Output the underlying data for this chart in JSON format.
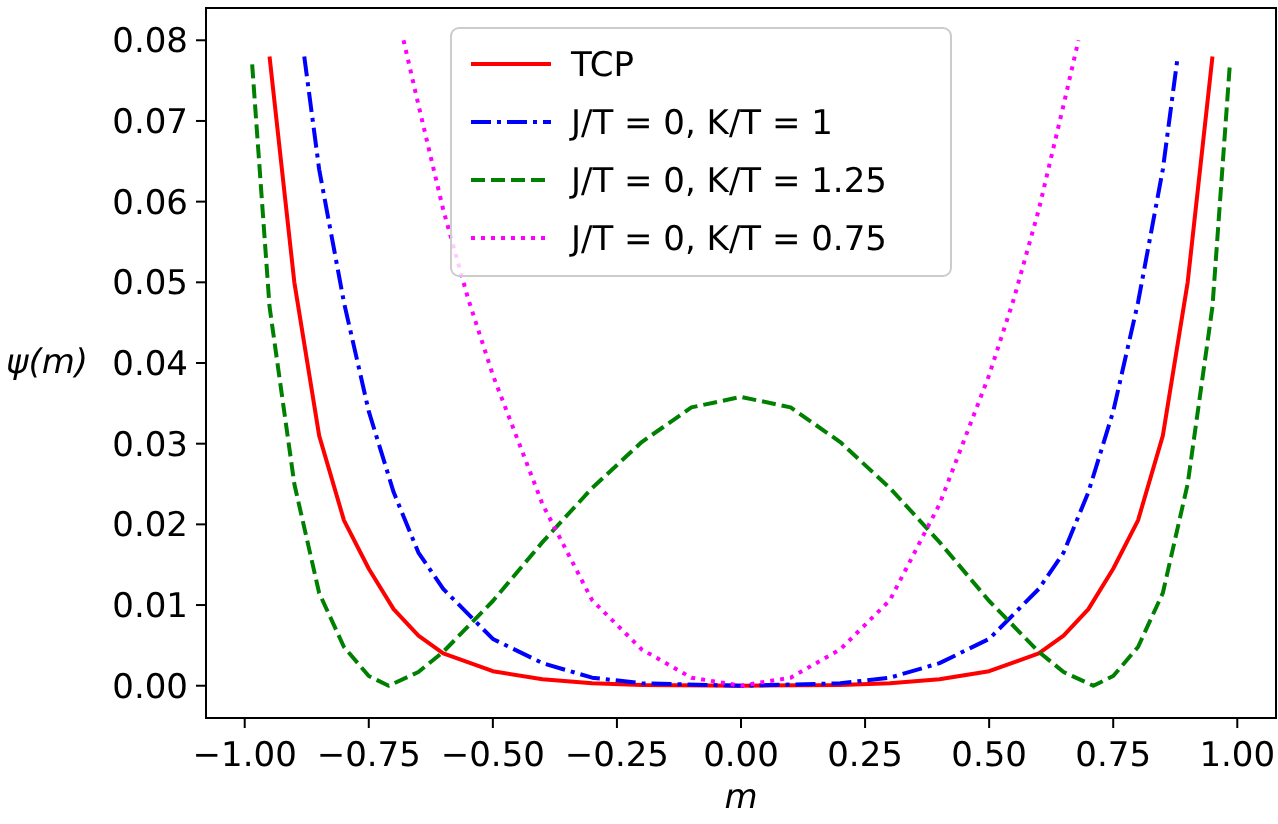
{
  "chart_data": {
    "type": "line",
    "xlabel": "m",
    "ylabel": "ψ(m)",
    "xlim": [
      -1.078,
      1.078
    ],
    "ylim": [
      -0.004,
      0.084
    ],
    "xticks": [
      {
        "value": -1,
        "label": "−1.00"
      },
      {
        "value": -0.75,
        "label": "−0.75"
      },
      {
        "value": -0.5,
        "label": "−0.50"
      },
      {
        "value": -0.25,
        "label": "−0.25"
      },
      {
        "value": 0,
        "label": "0.00"
      },
      {
        "value": 0.25,
        "label": "0.25"
      },
      {
        "value": 0.5,
        "label": "0.50"
      },
      {
        "value": 0.75,
        "label": "0.75"
      },
      {
        "value": 1,
        "label": "1.00"
      }
    ],
    "yticks": [
      {
        "value": 0,
        "label": "0.00"
      },
      {
        "value": 0.01,
        "label": "0.01"
      },
      {
        "value": 0.02,
        "label": "0.02"
      },
      {
        "value": 0.03,
        "label": "0.03"
      },
      {
        "value": 0.04,
        "label": "0.04"
      },
      {
        "value": 0.05,
        "label": "0.05"
      },
      {
        "value": 0.06,
        "label": "0.06"
      },
      {
        "value": 0.07,
        "label": "0.07"
      },
      {
        "value": 0.08,
        "label": "0.08"
      }
    ],
    "grid": false,
    "legend": "top",
    "marker": "none",
    "series": [
      {
        "name": "TCP",
        "color": "#ff0000",
        "line_style": "solid",
        "x": [
          -0.95,
          -0.9,
          -0.85,
          -0.8,
          -0.75,
          -0.7,
          -0.65,
          -0.6,
          -0.5,
          -0.4,
          -0.3,
          -0.2,
          0,
          0.2,
          0.3,
          0.4,
          0.5,
          0.6,
          0.65,
          0.7,
          0.75,
          0.8,
          0.85,
          0.9,
          0.95
        ],
        "values": [
          0.078,
          0.05,
          0.031,
          0.0205,
          0.0145,
          0.0095,
          0.0062,
          0.004,
          0.0018,
          0.0008,
          0.0003,
          0.0001,
          0,
          0.0001,
          0.0003,
          0.0008,
          0.0018,
          0.004,
          0.0062,
          0.0095,
          0.0145,
          0.0205,
          0.031,
          0.05,
          0.078
        ]
      },
      {
        "name": "J/T = 0, K/T = 1",
        "color": "#0000ff",
        "line_style": "dashdot",
        "x": [
          -0.88,
          -0.85,
          -0.8,
          -0.75,
          -0.7,
          -0.65,
          -0.6,
          -0.5,
          -0.4,
          -0.3,
          -0.2,
          0,
          0.2,
          0.3,
          0.4,
          0.5,
          0.6,
          0.65,
          0.7,
          0.75,
          0.8,
          0.85,
          0.88
        ],
        "values": [
          0.078,
          0.064,
          0.0475,
          0.034,
          0.024,
          0.0165,
          0.012,
          0.0058,
          0.0028,
          0.001,
          0.0003,
          0,
          0.0003,
          0.001,
          0.0028,
          0.0058,
          0.012,
          0.0165,
          0.024,
          0.034,
          0.0475,
          0.064,
          0.078
        ]
      },
      {
        "name": "J/T = 0, K/T = 1.25",
        "color": "#008000",
        "line_style": "dashed",
        "x": [
          -0.985,
          -0.95,
          -0.9,
          -0.85,
          -0.8,
          -0.75,
          -0.71,
          -0.65,
          -0.6,
          -0.5,
          -0.4,
          -0.3,
          -0.2,
          -0.1,
          0,
          0.1,
          0.2,
          0.3,
          0.4,
          0.5,
          0.6,
          0.65,
          0.71,
          0.75,
          0.8,
          0.85,
          0.9,
          0.95,
          0.985
        ],
        "values": [
          0.077,
          0.047,
          0.025,
          0.0115,
          0.0048,
          0.0012,
          0,
          0.0017,
          0.0042,
          0.0105,
          0.0178,
          0.0245,
          0.0302,
          0.0345,
          0.0358,
          0.0345,
          0.0302,
          0.0245,
          0.0178,
          0.0105,
          0.0042,
          0.0017,
          0,
          0.0012,
          0.0048,
          0.0115,
          0.025,
          0.047,
          0.077
        ]
      },
      {
        "name": "J/T = 0, K/T = 0.75",
        "color": "#ff00ff",
        "line_style": "dotted",
        "x": [
          -0.68,
          -0.65,
          -0.6,
          -0.55,
          -0.5,
          -0.4,
          -0.3,
          -0.2,
          -0.1,
          0,
          0.1,
          0.2,
          0.3,
          0.4,
          0.5,
          0.55,
          0.6,
          0.65,
          0.68
        ],
        "values": [
          0.08,
          0.072,
          0.059,
          0.048,
          0.0385,
          0.0225,
          0.0106,
          0.0045,
          0.001,
          0,
          0.001,
          0.0045,
          0.0106,
          0.0225,
          0.0385,
          0.048,
          0.059,
          0.072,
          0.08
        ]
      }
    ]
  }
}
